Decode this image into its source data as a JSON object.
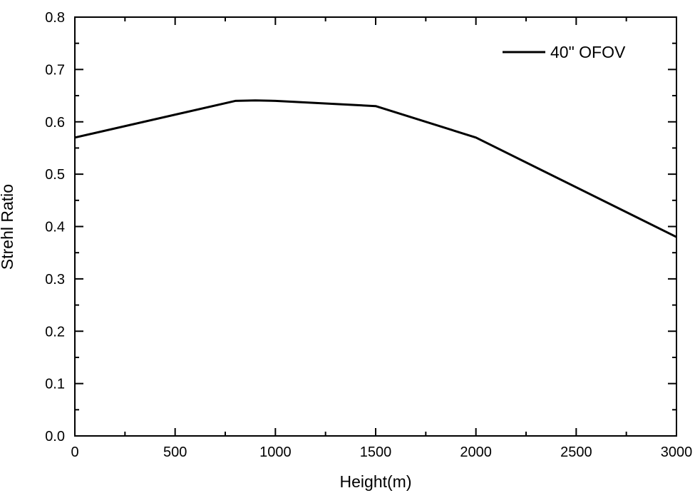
{
  "chart_data": {
    "type": "line",
    "title": "",
    "xlabel": "Height(m)",
    "ylabel": "Strehl Ratio",
    "xlim": [
      0,
      3000
    ],
    "ylim": [
      0.0,
      0.8
    ],
    "x_ticks": [
      0,
      500,
      1000,
      1500,
      2000,
      2500,
      3000
    ],
    "x_tick_labels": [
      "0",
      "500",
      "1000",
      "1500",
      "2000",
      "2500",
      "3000"
    ],
    "x_minor_step": 250,
    "y_ticks": [
      0.0,
      0.1,
      0.2,
      0.3,
      0.4,
      0.5,
      0.6,
      0.7,
      0.8
    ],
    "y_tick_labels": [
      "0.0",
      "0.1",
      "0.2",
      "0.3",
      "0.4",
      "0.5",
      "0.6",
      "0.7",
      "0.8"
    ],
    "y_minor_step": 0.05,
    "grid": false,
    "legend_position": "top-right",
    "series": [
      {
        "name": "40\" OFOV",
        "color": "#000000",
        "x": [
          0,
          800,
          900,
          1000,
          1500,
          2000,
          3000
        ],
        "values": [
          0.57,
          0.64,
          0.641,
          0.64,
          0.63,
          0.57,
          0.38
        ]
      }
    ]
  }
}
